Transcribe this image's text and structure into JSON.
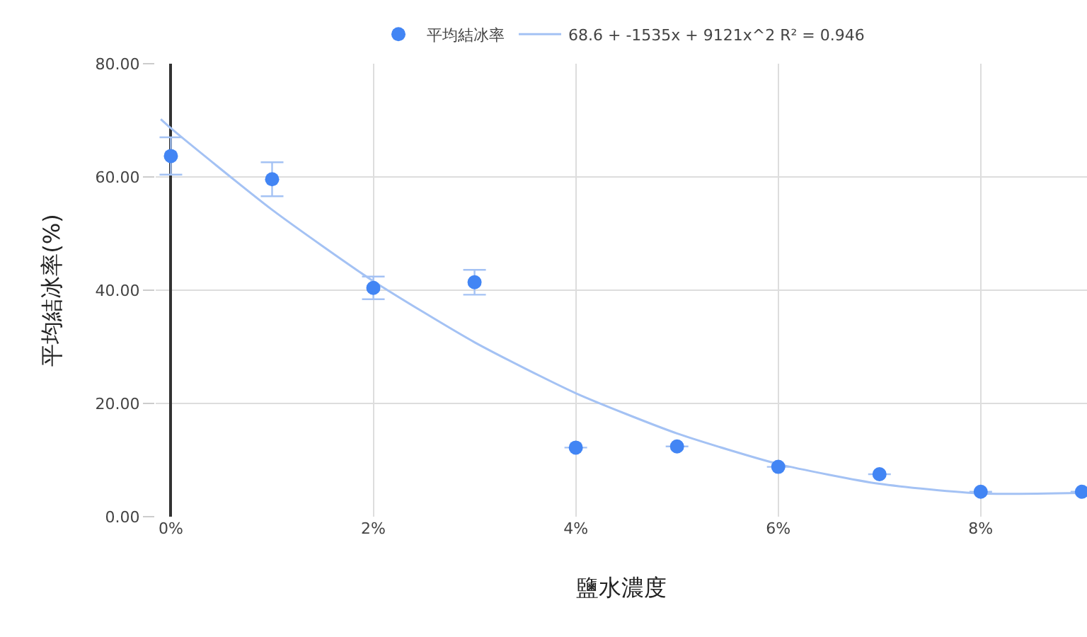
{
  "chart_data": {
    "type": "scatter",
    "xlabel": "鹽水濃度",
    "ylabel": "平均結冰率(%)",
    "x": [
      0,
      1,
      2,
      3,
      4,
      5,
      6,
      7,
      8,
      9
    ],
    "series": [
      {
        "name": "平均結冰率",
        "color": "#4285f4",
        "marker": "circle",
        "values": [
          63.7,
          59.6,
          40.4,
          41.4,
          12.2,
          12.4,
          8.8,
          7.5,
          4.4,
          4.4
        ],
        "errors": [
          3.3,
          3.0,
          2.0,
          2.2,
          null,
          null,
          null,
          null,
          null,
          null
        ]
      },
      {
        "name": "68.6 + -1535x + 9121x^2 R² = 0.946",
        "type": "line",
        "color": "#a4c2f4",
        "marker": "none",
        "x": [
          -0.1,
          0,
          1,
          2,
          3,
          4,
          5,
          6,
          7,
          8,
          9
        ],
        "values": [
          70.2,
          68.6,
          54.2,
          41.6,
          30.8,
          21.8,
          14.7,
          9.3,
          5.8,
          4.1,
          4.2
        ]
      }
    ],
    "xlim": [
      -0.15,
      9.05
    ],
    "ylim": [
      0,
      80
    ],
    "xticks": [
      {
        "value": 0,
        "label": "0%"
      },
      {
        "value": 2,
        "label": "2%"
      },
      {
        "value": 4,
        "label": "4%"
      },
      {
        "value": 6,
        "label": "6%"
      },
      {
        "value": 8,
        "label": "8%"
      }
    ],
    "yticks": [
      {
        "value": 0,
        "label": "0.00"
      },
      {
        "value": 20,
        "label": "20.00"
      },
      {
        "value": 40,
        "label": "40.00"
      },
      {
        "value": 60,
        "label": "60.00"
      },
      {
        "value": 80,
        "label": "80.00"
      }
    ],
    "grid": true,
    "legend": "top"
  }
}
